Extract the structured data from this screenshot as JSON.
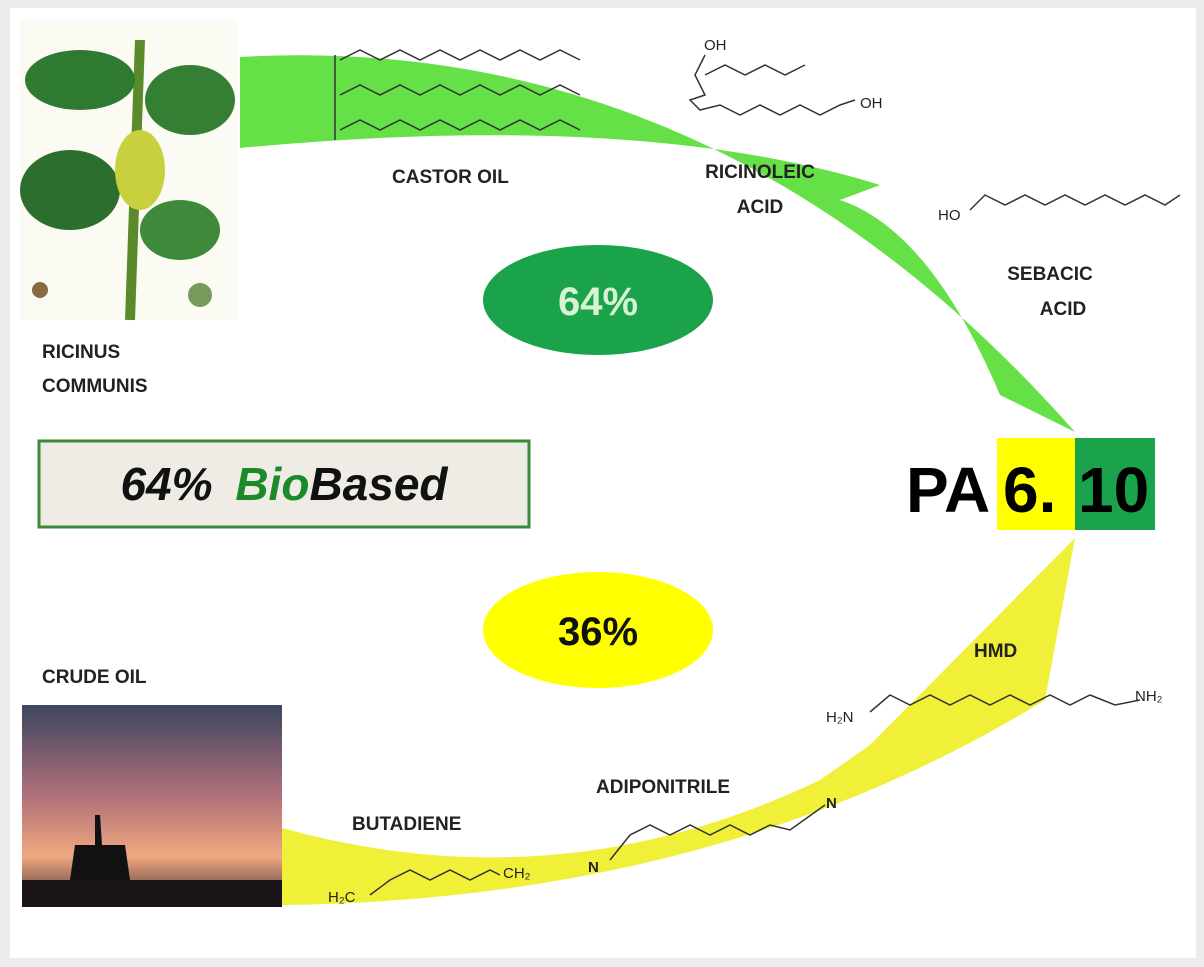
{
  "sources": {
    "bio": {
      "lines": [
        "RICINUS",
        "COMMUNIS"
      ]
    },
    "fossil": {
      "label": "CRUDE OIL"
    }
  },
  "intermediates": {
    "castor_oil": "CASTOR OIL",
    "ricinoleic_acid": [
      "RICINOLEIC",
      "ACID"
    ],
    "sebacic_acid": [
      "SEBACIC",
      "ACID"
    ],
    "butadiene": "BUTADIENE",
    "adiponitrile": "ADIPONITRILE",
    "hmd": "HMD"
  },
  "atoms": {
    "ricinoleic_oh": "OH",
    "ricinoleic_acid_oh": "OH",
    "sebacic_ho": "HO",
    "hmd_left": "H₂N",
    "hmd_right": "NH₂",
    "adiponitrile_right": "N",
    "adiponitrile_left": "N",
    "butadiene_left": "H₂C",
    "butadiene_right": "CH₂"
  },
  "shares": {
    "bio": "64%",
    "fossil": "36%"
  },
  "badge": {
    "percent": "64%",
    "bio": "Bio",
    "based": "Based"
  },
  "product": {
    "prefix": "PA",
    "fossil_part": "6.",
    "bio_part": "10"
  }
}
